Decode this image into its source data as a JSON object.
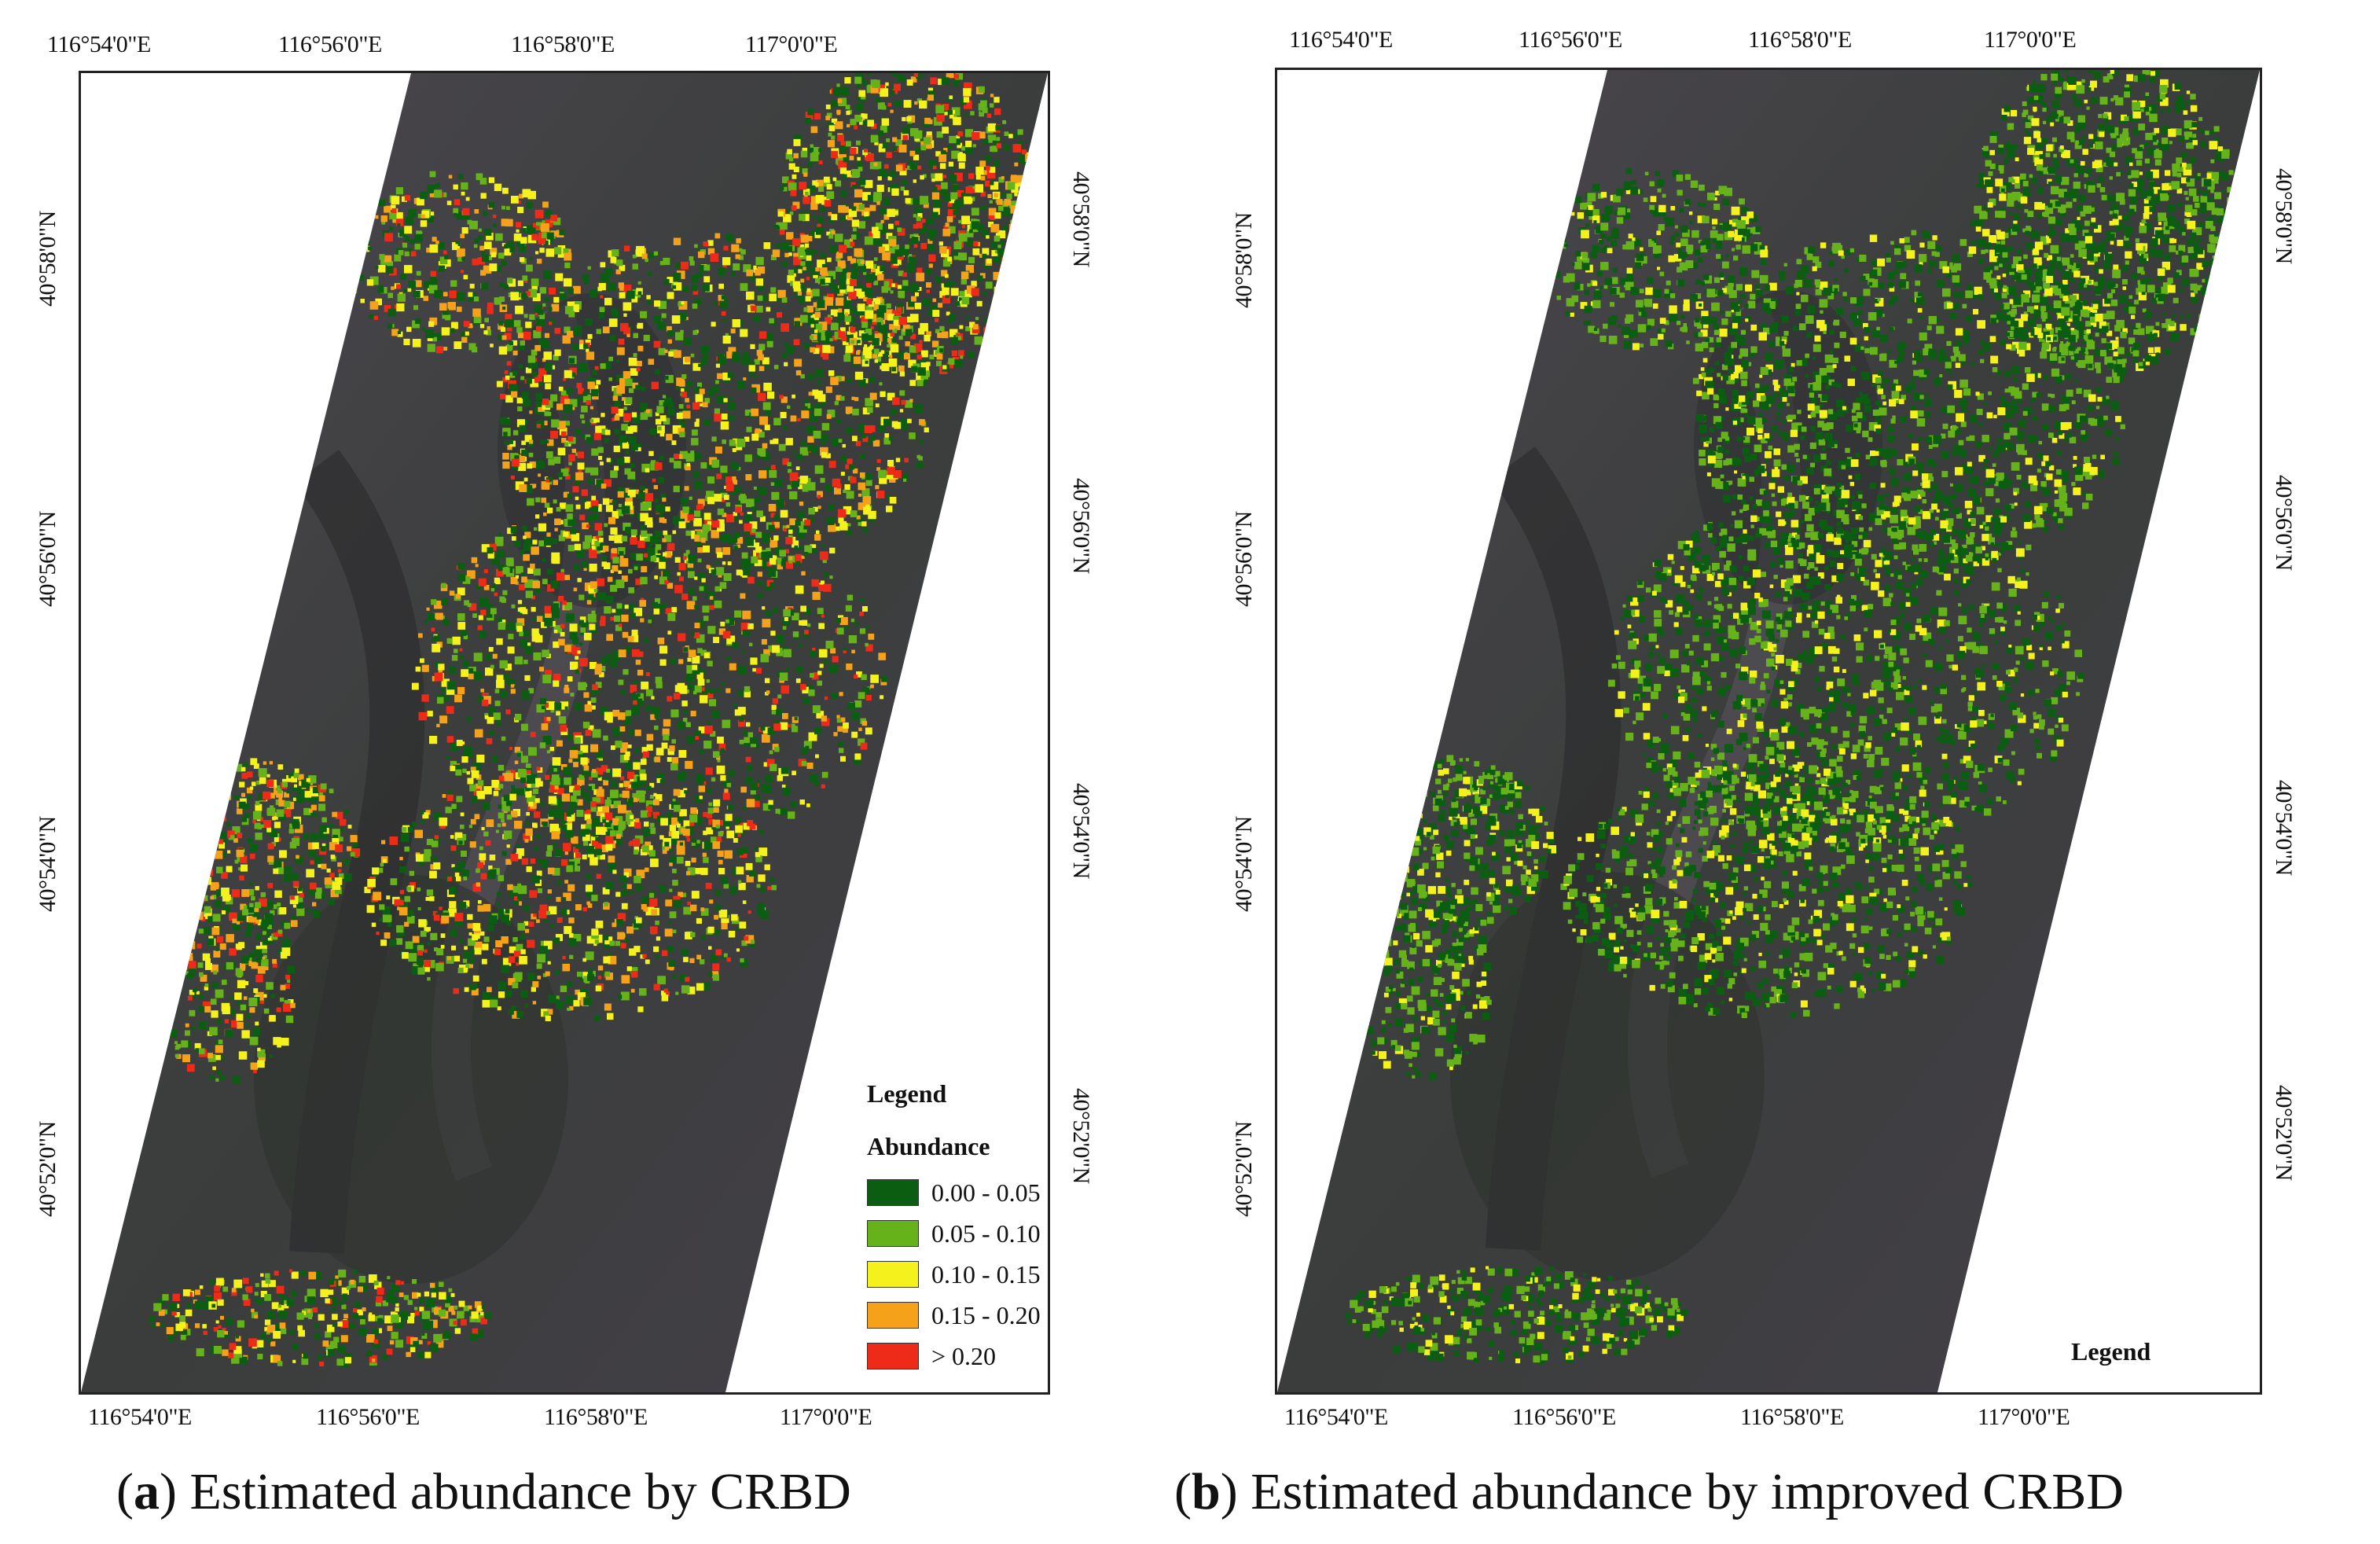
{
  "colors": {
    "class_0_00_0_05": "#0b5d12",
    "class_0_05_0_10": "#66b21a",
    "class_0_10_0_15": "#f4f11c",
    "class_0_15_0_20": "#f5a21a",
    "class_gt_0_20": "#ee2a18",
    "terrain_dark": "#3b3b3e",
    "terrain_mid": "#5a5258"
  },
  "panel_a": {
    "caption_letter": "a",
    "caption_text": " Estimated abundance by CRBD",
    "lon_ticks": [
      "116°54'0\"E",
      "116°56'0\"E",
      "116°58'0\"E",
      "117°0'0\"E"
    ],
    "lat_ticks": [
      "40°58'0\"N",
      "40°56'0\"N",
      "40°54'0\"N",
      "40°52'0\"N"
    ],
    "legend": {
      "title": "Legend",
      "subtitle": "Abundance",
      "items": [
        {
          "label": "0.00 - 0.05",
          "color": "#0b5d12"
        },
        {
          "label": "0.05 - 0.10",
          "color": "#66b21a"
        },
        {
          "label": "0.10 - 0.15",
          "color": "#f4f11c"
        },
        {
          "label": "0.15 - 0.20",
          "color": "#f5a21a"
        },
        {
          "label": "> 0.20",
          "color": "#ee2a18"
        }
      ]
    }
  },
  "panel_b": {
    "caption_letter": "b",
    "caption_text": " Estimated abundance by improved CRBD",
    "lon_ticks": [
      "116°54'0\"E",
      "116°56'0\"E",
      "116°58'0\"E",
      "117°0'0\"E"
    ],
    "lat_ticks": [
      "40°58'0\"N",
      "40°56'0\"N",
      "40°54'0\"N",
      "40°52'0\"N"
    ],
    "legend": {
      "title": "Legend"
    }
  }
}
